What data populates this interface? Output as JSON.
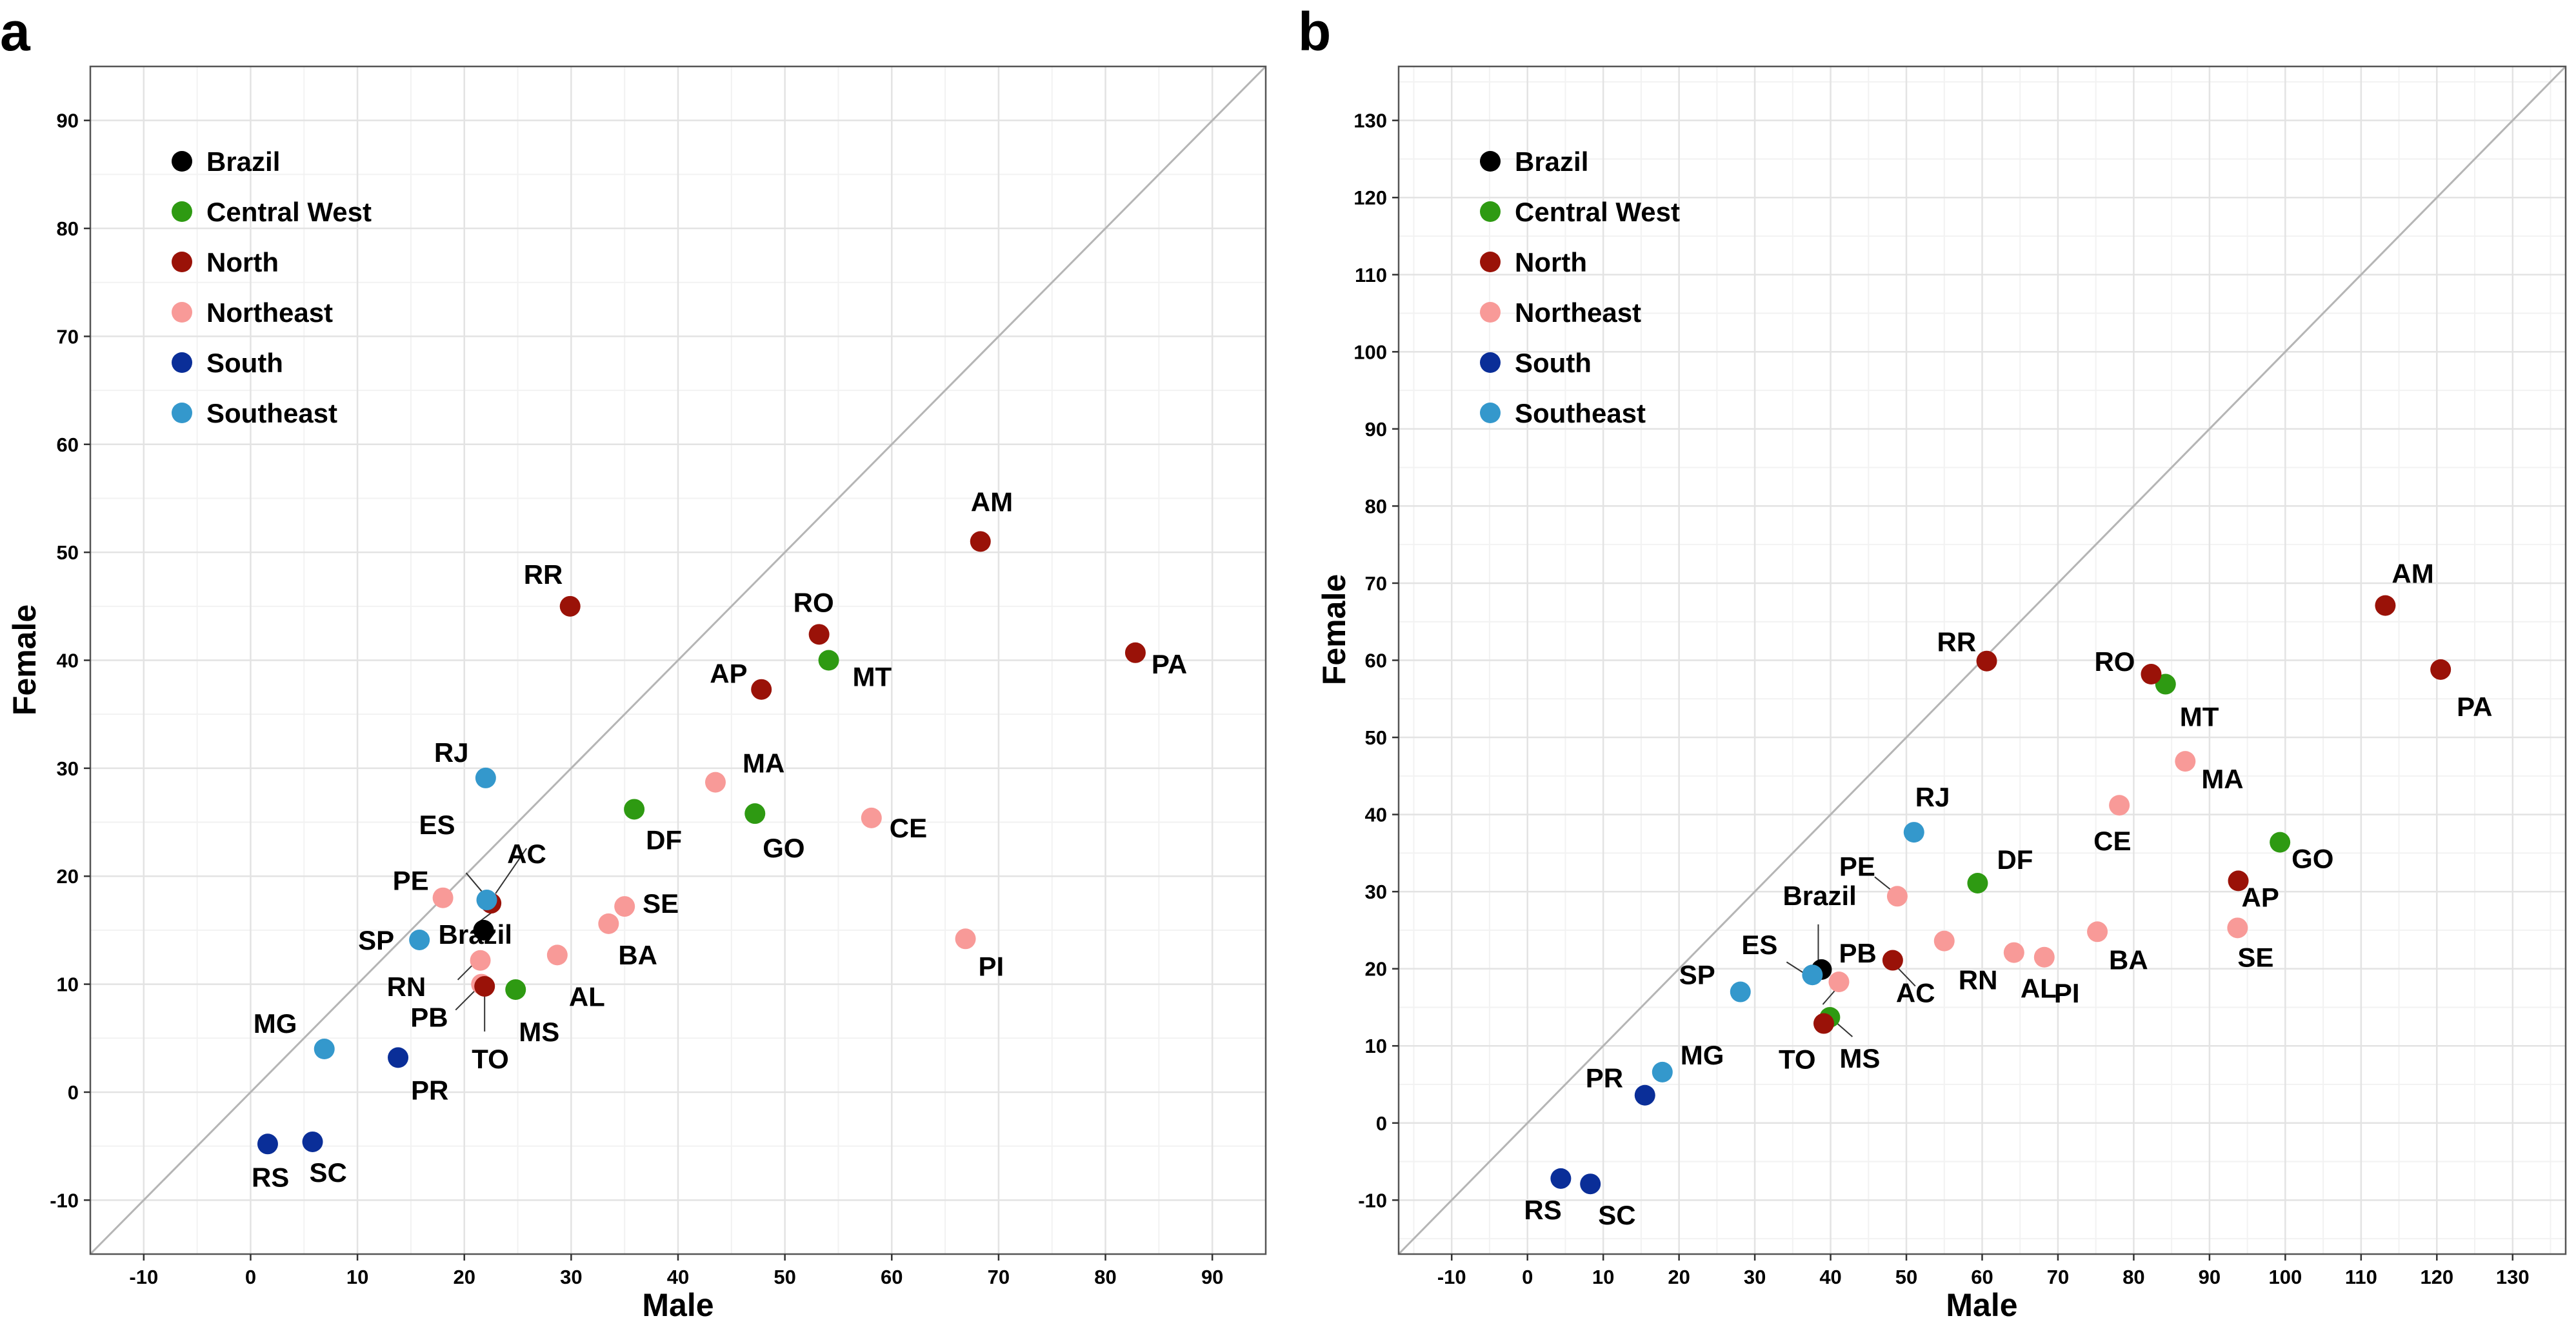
{
  "chart_data": [
    {
      "panel": "a",
      "type": "scatter",
      "xlabel": "Male",
      "ylabel": "Female",
      "xlim": [
        -15,
        95
      ],
      "ylim": [
        -15,
        95
      ],
      "xticks": [
        -10,
        0,
        10,
        20,
        30,
        40,
        50,
        60,
        70,
        80,
        90
      ],
      "yticks": [
        -10,
        0,
        10,
        20,
        30,
        40,
        50,
        60,
        70,
        80,
        90
      ],
      "grid": true,
      "reference_line": "y = x",
      "legend": {
        "placement": "top-left",
        "entries": [
          {
            "label": "Brazil",
            "color": "#000000"
          },
          {
            "label": "Central West",
            "color": "#2e9a12"
          },
          {
            "label": "North",
            "color": "#9a1208"
          },
          {
            "label": "Northeast",
            "color": "#f89a98"
          },
          {
            "label": "South",
            "color": "#0a2e98"
          },
          {
            "label": "Southeast",
            "color": "#3498cc"
          }
        ]
      },
      "points": [
        {
          "label": "Brazil",
          "region": "Brazil",
          "x": 21.8,
          "y": 15.0
        },
        {
          "label": "AC",
          "region": "North",
          "x": 22.5,
          "y": 17.5
        },
        {
          "label": "AL",
          "region": "Northeast",
          "x": 28.7,
          "y": 12.7
        },
        {
          "label": "AM",
          "region": "North",
          "x": 68.3,
          "y": 51.0
        },
        {
          "label": "AP",
          "region": "North",
          "x": 47.8,
          "y": 37.3
        },
        {
          "label": "BA",
          "region": "Northeast",
          "x": 33.5,
          "y": 15.6
        },
        {
          "label": "CE",
          "region": "Northeast",
          "x": 58.1,
          "y": 25.4
        },
        {
          "label": "DF",
          "region": "Central West",
          "x": 35.9,
          "y": 26.2
        },
        {
          "label": "ES",
          "region": "Southeast",
          "x": 22.1,
          "y": 17.8
        },
        {
          "label": "GO",
          "region": "Central West",
          "x": 47.2,
          "y": 25.8
        },
        {
          "label": "MA",
          "region": "Northeast",
          "x": 43.5,
          "y": 28.7
        },
        {
          "label": "MG",
          "region": "Southeast",
          "x": 6.9,
          "y": 4.0
        },
        {
          "label": "MS",
          "region": "Central West",
          "x": 24.8,
          "y": 9.5
        },
        {
          "label": "MT",
          "region": "Central West",
          "x": 54.1,
          "y": 40.0
        },
        {
          "label": "PA",
          "region": "North",
          "x": 82.8,
          "y": 40.7
        },
        {
          "label": "PB",
          "region": "Northeast",
          "x": 21.6,
          "y": 10.0
        },
        {
          "label": "PE",
          "region": "Northeast",
          "x": 18.0,
          "y": 18.0
        },
        {
          "label": "PI",
          "region": "Northeast",
          "x": 66.9,
          "y": 14.2
        },
        {
          "label": "PR",
          "region": "South",
          "x": 13.8,
          "y": 3.2
        },
        {
          "label": "RJ",
          "region": "Southeast",
          "x": 22.0,
          "y": 29.1
        },
        {
          "label": "RN",
          "region": "Northeast",
          "x": 21.5,
          "y": 12.2
        },
        {
          "label": "RO",
          "region": "North",
          "x": 53.2,
          "y": 42.4
        },
        {
          "label": "RR",
          "region": "North",
          "x": 29.9,
          "y": 45.0
        },
        {
          "label": "RS",
          "region": "South",
          "x": 1.6,
          "y": -4.8
        },
        {
          "label": "SC",
          "region": "South",
          "x": 5.8,
          "y": -4.6
        },
        {
          "label": "SE",
          "region": "Northeast",
          "x": 35.0,
          "y": 17.2
        },
        {
          "label": "SP",
          "region": "Southeast",
          "x": 15.8,
          "y": 14.1
        },
        {
          "label": "TO",
          "region": "North",
          "x": 21.9,
          "y": 9.8
        }
      ]
    },
    {
      "panel": "b",
      "type": "scatter",
      "xlabel": "Male",
      "ylabel": "Female",
      "xlim": [
        -17,
        137
      ],
      "ylim": [
        -17,
        137
      ],
      "xticks": [
        -10,
        0,
        10,
        20,
        30,
        40,
        50,
        60,
        70,
        80,
        90,
        100,
        110,
        120,
        130
      ],
      "yticks": [
        -10,
        0,
        10,
        20,
        30,
        40,
        50,
        60,
        70,
        80,
        90,
        100,
        110,
        120,
        130
      ],
      "grid": true,
      "reference_line": "y = x",
      "legend": {
        "placement": "top-left",
        "entries": [
          {
            "label": "Brazil",
            "color": "#000000"
          },
          {
            "label": "Central West",
            "color": "#2e9a12"
          },
          {
            "label": "North",
            "color": "#9a1208"
          },
          {
            "label": "Northeast",
            "color": "#f89a98"
          },
          {
            "label": "South",
            "color": "#0a2e98"
          },
          {
            "label": "Southeast",
            "color": "#3498cc"
          }
        ]
      },
      "points": [
        {
          "label": "Brazil",
          "region": "Brazil",
          "x": 38.8,
          "y": 19.9
        },
        {
          "label": "AC",
          "region": "North",
          "x": 48.2,
          "y": 21.1
        },
        {
          "label": "AL",
          "region": "Northeast",
          "x": 64.2,
          "y": 22.1
        },
        {
          "label": "AM",
          "region": "North",
          "x": 113.2,
          "y": 67.1
        },
        {
          "label": "AP",
          "region": "North",
          "x": 93.8,
          "y": 31.4
        },
        {
          "label": "BA",
          "region": "Northeast",
          "x": 75.2,
          "y": 24.8
        },
        {
          "label": "CE",
          "region": "Northeast",
          "x": 78.1,
          "y": 41.2
        },
        {
          "label": "DF",
          "region": "Central West",
          "x": 59.4,
          "y": 31.1
        },
        {
          "label": "ES",
          "region": "Southeast",
          "x": 37.6,
          "y": 19.2
        },
        {
          "label": "GO",
          "region": "Central West",
          "x": 99.3,
          "y": 36.4
        },
        {
          "label": "MA",
          "region": "Northeast",
          "x": 86.8,
          "y": 46.9
        },
        {
          "label": "MG",
          "region": "Southeast",
          "x": 17.8,
          "y": 6.6
        },
        {
          "label": "MS",
          "region": "Central West",
          "x": 39.9,
          "y": 13.7
        },
        {
          "label": "MT",
          "region": "Central West",
          "x": 84.2,
          "y": 56.9
        },
        {
          "label": "PA",
          "region": "North",
          "x": 120.5,
          "y": 58.8
        },
        {
          "label": "PB",
          "region": "Northeast",
          "x": 41.1,
          "y": 18.3
        },
        {
          "label": "PE",
          "region": "Northeast",
          "x": 48.8,
          "y": 29.4
        },
        {
          "label": "PI",
          "region": "Northeast",
          "x": 68.2,
          "y": 21.5
        },
        {
          "label": "PR",
          "region": "South",
          "x": 15.5,
          "y": 3.6
        },
        {
          "label": "RJ",
          "region": "Southeast",
          "x": 51.0,
          "y": 37.7
        },
        {
          "label": "RN",
          "region": "Northeast",
          "x": 55.0,
          "y": 23.6
        },
        {
          "label": "RO",
          "region": "North",
          "x": 82.3,
          "y": 58.2
        },
        {
          "label": "RR",
          "region": "North",
          "x": 60.6,
          "y": 59.9
        },
        {
          "label": "RS",
          "region": "South",
          "x": 4.4,
          "y": -7.2
        },
        {
          "label": "SC",
          "region": "South",
          "x": 8.3,
          "y": -7.9
        },
        {
          "label": "SE",
          "region": "Northeast",
          "x": 93.7,
          "y": 25.3
        },
        {
          "label": "SP",
          "region": "Southeast",
          "x": 28.1,
          "y": 17.0
        },
        {
          "label": "TO",
          "region": "North",
          "x": 39.1,
          "y": 12.9
        }
      ]
    }
  ]
}
